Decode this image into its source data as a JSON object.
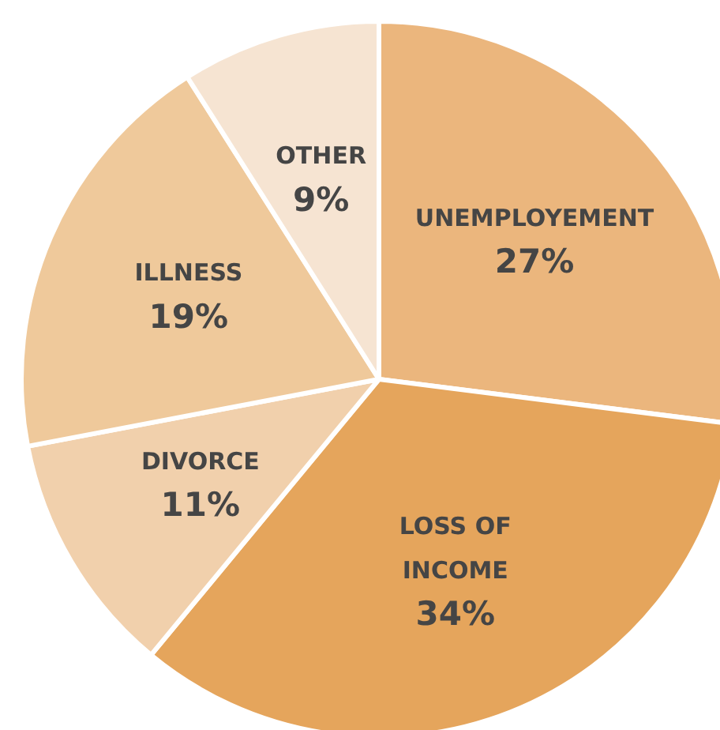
{
  "chart_data": {
    "type": "pie",
    "categories": [
      "UNEMPLOYEMENT",
      "LOSS OF INCOME",
      "DIVORCE",
      "ILLNESS",
      "OTHER"
    ],
    "values": [
      27,
      34,
      11,
      19,
      9
    ],
    "value_labels": [
      "27%",
      "34%",
      "11%",
      "19%",
      "9%"
    ],
    "colors": [
      "#ebb67d",
      "#e5a55c",
      "#f1d0ac",
      "#efc99b",
      "#f6e4d2"
    ],
    "legend": false
  }
}
